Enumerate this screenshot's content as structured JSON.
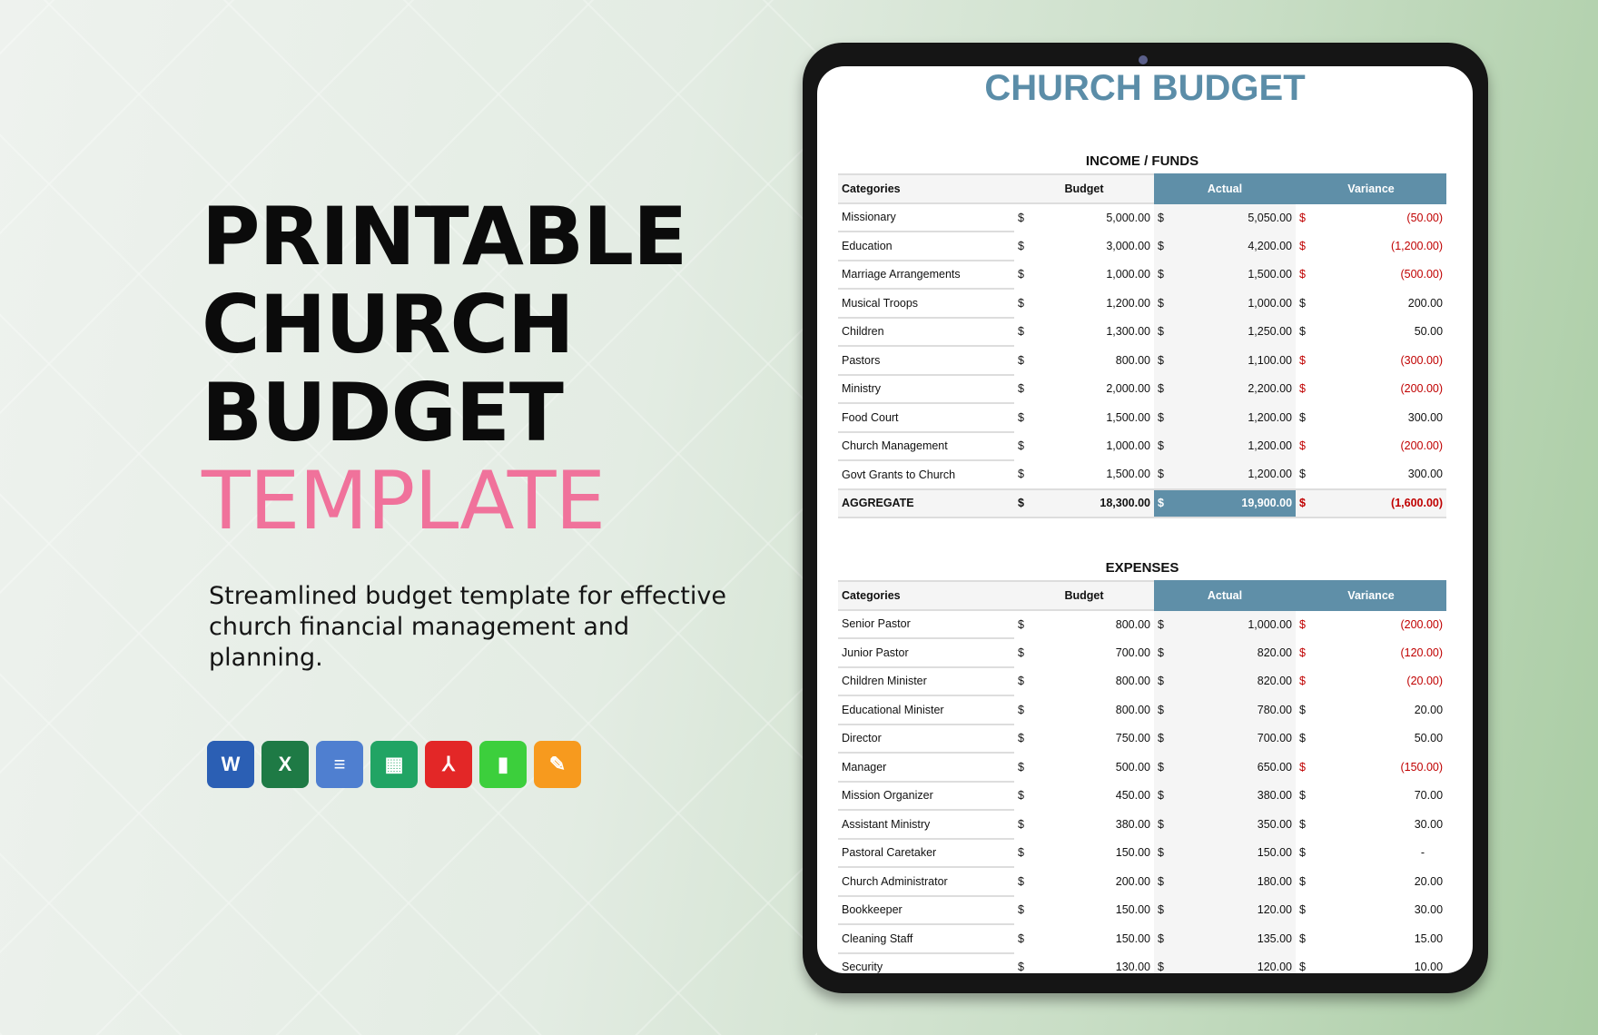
{
  "promo": {
    "line1": "PRINTABLE",
    "line2": "CHURCH",
    "line3": "BUDGET",
    "line4": "TEMPLATE",
    "subtitle": "Streamlined budget template for effective church financial management and planning.",
    "accent": "#f0729b"
  },
  "formats": [
    {
      "name": "word-icon",
      "letter": "W",
      "color": "#2b5fb4"
    },
    {
      "name": "excel-icon",
      "letter": "X",
      "color": "#1e7a45"
    },
    {
      "name": "google-docs-icon",
      "letter": "≡",
      "color": "#4f7fd0"
    },
    {
      "name": "google-sheets-icon",
      "letter": "▦",
      "color": "#21a464"
    },
    {
      "name": "pdf-icon",
      "letter": "⅄",
      "color": "#e32727"
    },
    {
      "name": "numbers-icon",
      "letter": "▮",
      "color": "#3ccf3c"
    },
    {
      "name": "pages-icon",
      "letter": "✎",
      "color": "#f79a1e"
    }
  ],
  "sheet": {
    "title": "CHURCH BUDGET",
    "header_color": "#5f8fa8",
    "income": {
      "title": "INCOME / FUNDS",
      "columns": [
        "Categories",
        "Budget",
        "Actual",
        "Variance"
      ],
      "currency": "$",
      "rows": [
        [
          "Missionary",
          "5,000.00",
          "5,050.00",
          "(50.00)",
          true
        ],
        [
          "Education",
          "3,000.00",
          "4,200.00",
          "(1,200.00)",
          true
        ],
        [
          "Marriage Arrangements",
          "1,000.00",
          "1,500.00",
          "(500.00)",
          true
        ],
        [
          "Musical Troops",
          "1,200.00",
          "1,000.00",
          "200.00",
          false
        ],
        [
          "Children",
          "1,300.00",
          "1,250.00",
          "50.00",
          false
        ],
        [
          "Pastors",
          "800.00",
          "1,100.00",
          "(300.00)",
          true
        ],
        [
          "Ministry",
          "2,000.00",
          "2,200.00",
          "(200.00)",
          true
        ],
        [
          "Food Court",
          "1,500.00",
          "1,200.00",
          "300.00",
          false
        ],
        [
          "Church Management",
          "1,000.00",
          "1,200.00",
          "(200.00)",
          true
        ],
        [
          "Govt Grants to Church",
          "1,500.00",
          "1,200.00",
          "300.00",
          false
        ]
      ],
      "aggregate": [
        "AGGREGATE",
        "18,300.00",
        "19,900.00",
        "(1,600.00)",
        true
      ]
    },
    "expenses": {
      "title": "EXPENSES",
      "columns": [
        "Categories",
        "Budget",
        "Actual",
        "Variance"
      ],
      "currency": "$",
      "rows": [
        [
          "Senior Pastor",
          "800.00",
          "1,000.00",
          "(200.00)",
          true
        ],
        [
          "Junior Pastor",
          "700.00",
          "820.00",
          "(120.00)",
          true
        ],
        [
          "Children Minister",
          "800.00",
          "820.00",
          "(20.00)",
          true
        ],
        [
          "Educational Minister",
          "800.00",
          "780.00",
          "20.00",
          false
        ],
        [
          "Director",
          "750.00",
          "700.00",
          "50.00",
          false
        ],
        [
          "Manager",
          "500.00",
          "650.00",
          "(150.00)",
          true
        ],
        [
          "Mission Organizer",
          "450.00",
          "380.00",
          "70.00",
          false
        ],
        [
          "Assistant Ministry",
          "380.00",
          "350.00",
          "30.00",
          false
        ],
        [
          "Pastoral Caretaker",
          "150.00",
          "150.00",
          "-",
          false
        ],
        [
          "Church Administrator",
          "200.00",
          "180.00",
          "20.00",
          false
        ],
        [
          "Bookkeeper",
          "150.00",
          "120.00",
          "30.00",
          false
        ],
        [
          "Cleaning Staff",
          "150.00",
          "135.00",
          "15.00",
          false
        ],
        [
          "Security",
          "130.00",
          "120.00",
          "10.00",
          false
        ]
      ]
    }
  }
}
